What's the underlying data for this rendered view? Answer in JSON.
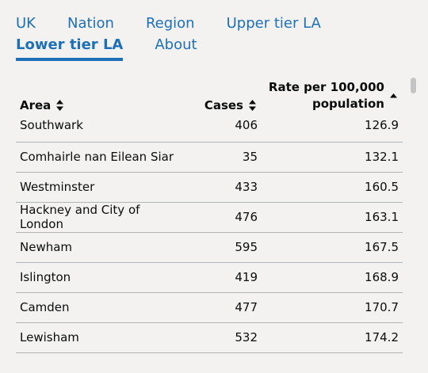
{
  "nav": {
    "tabs": [
      {
        "label": "UK"
      },
      {
        "label": "Nation"
      },
      {
        "label": "Region"
      },
      {
        "label": "Upper tier LA"
      },
      {
        "label": "Lower tier LA"
      },
      {
        "label": "About"
      }
    ],
    "active_tab": "Lower tier LA"
  },
  "table": {
    "headers": {
      "area": "Area",
      "cases": "Cases",
      "rate_line1": "Rate per 100,000",
      "rate_line2": "population"
    },
    "sort": {
      "column": "rate",
      "direction": "ascending"
    },
    "rows": [
      {
        "area": "Southwark",
        "cases": "406",
        "rate": "126.9"
      },
      {
        "area": "Comhairle nan Eilean Siar",
        "cases": "35",
        "rate": "132.1"
      },
      {
        "area": "Westminster",
        "cases": "433",
        "rate": "160.5"
      },
      {
        "area": "Hackney and City of London",
        "cases": "476",
        "rate": "163.1"
      },
      {
        "area": "Newham",
        "cases": "595",
        "rate": "167.5"
      },
      {
        "area": "Islington",
        "cases": "419",
        "rate": "168.9"
      },
      {
        "area": "Camden",
        "cases": "477",
        "rate": "170.7"
      },
      {
        "area": "Lewisham",
        "cases": "532",
        "rate": "174.2"
      }
    ]
  },
  "colors": {
    "link": "#1d70b8",
    "text": "#0b0c0c",
    "border": "#b1b4b6",
    "background": "#f3f2f1"
  }
}
